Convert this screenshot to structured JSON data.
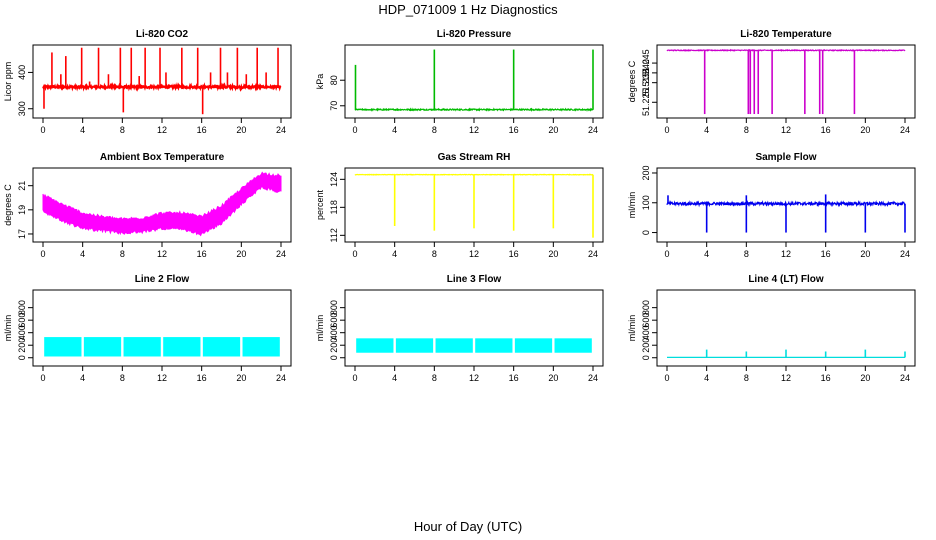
{
  "figure": {
    "title": "HDP_071009  1 Hz Diagnostics",
    "xlabel": "Hour of Day (UTC)"
  },
  "chart_data": [
    {
      "type": "line",
      "title": "Li-820 CO2",
      "ylabel": "Licor ppm",
      "color": "#ff0000",
      "xlim": [
        0,
        24
      ],
      "xticks": [
        "0",
        "4",
        "8",
        "12",
        "16",
        "20",
        "24"
      ],
      "ylim": [
        280,
        470
      ],
      "yticks": [
        {
          "v": 300,
          "label": "300"
        },
        {
          "v": 400,
          "label": "400"
        }
      ],
      "series": {
        "baseline": 360,
        "noise": 3,
        "spikes": [
          {
            "x": 0.1,
            "y": 300
          },
          {
            "x": 0.9,
            "y": 455
          },
          {
            "x": 1.8,
            "y": 395
          },
          {
            "x": 2.3,
            "y": 445
          },
          {
            "x": 3.9,
            "y": 468
          },
          {
            "x": 4.7,
            "y": 375
          },
          {
            "x": 5.6,
            "y": 468
          },
          {
            "x": 6.6,
            "y": 395
          },
          {
            "x": 7.8,
            "y": 468
          },
          {
            "x": 8.1,
            "y": 290
          },
          {
            "x": 8.9,
            "y": 468
          },
          {
            "x": 9.7,
            "y": 390
          },
          {
            "x": 10.3,
            "y": 468
          },
          {
            "x": 11.8,
            "y": 468
          },
          {
            "x": 12.4,
            "y": 400
          },
          {
            "x": 14.0,
            "y": 468
          },
          {
            "x": 15.6,
            "y": 468
          },
          {
            "x": 16.1,
            "y": 285
          },
          {
            "x": 16.9,
            "y": 400
          },
          {
            "x": 17.9,
            "y": 468
          },
          {
            "x": 18.6,
            "y": 400
          },
          {
            "x": 19.6,
            "y": 468
          },
          {
            "x": 20.5,
            "y": 395
          },
          {
            "x": 21.6,
            "y": 468
          },
          {
            "x": 22.5,
            "y": 400
          },
          {
            "x": 23.7,
            "y": 468
          }
        ]
      }
    },
    {
      "type": "line",
      "title": "Li-820 Pressure",
      "ylabel": "kPa",
      "color": "#00bb00",
      "xlim": [
        0,
        24
      ],
      "xticks": [
        "0",
        "4",
        "8",
        "12",
        "16",
        "20",
        "24"
      ],
      "ylim": [
        66,
        93
      ],
      "yticks": [
        {
          "v": 70,
          "label": "70"
        },
        {
          "v": 80,
          "label": "80"
        }
      ],
      "series": {
        "baseline": 68.5,
        "noise": 0.25,
        "spikes": [
          {
            "x": 0.05,
            "y": 86
          },
          {
            "x": 8.0,
            "y": 92
          },
          {
            "x": 16.0,
            "y": 92
          },
          {
            "x": 24.0,
            "y": 92
          }
        ]
      }
    },
    {
      "type": "line",
      "title": "Li-820 Temperature",
      "ylabel": "degrees C",
      "color": "#cc00cc",
      "xlim": [
        0,
        24
      ],
      "xticks": [
        "0",
        "4",
        "8",
        "12",
        "16",
        "20",
        "24"
      ],
      "ylim": [
        51.218,
        51.2532
      ],
      "yticks": [
        {
          "v": 51.225,
          "label": "51.225"
        },
        {
          "v": 51.235,
          "label": "51.235"
        },
        {
          "v": 51.24,
          "label": "51.240"
        },
        {
          "v": 51.245,
          "label": "51.245"
        }
      ],
      "series": {
        "baseline": 51.2515,
        "noise": 0.0002,
        "dips": [
          {
            "x": 3.8,
            "y": 51.219
          },
          {
            "x": 8.2,
            "y": 51.219
          },
          {
            "x": 8.4,
            "y": 51.219
          },
          {
            "x": 8.8,
            "y": 51.219
          },
          {
            "x": 9.2,
            "y": 51.219
          },
          {
            "x": 10.6,
            "y": 51.219
          },
          {
            "x": 13.9,
            "y": 51.219
          },
          {
            "x": 15.4,
            "y": 51.219
          },
          {
            "x": 15.7,
            "y": 51.219
          },
          {
            "x": 18.9,
            "y": 51.219
          }
        ]
      }
    },
    {
      "type": "area",
      "title": "Ambient Box Temperature",
      "ylabel": "degrees C",
      "color": "#ff00ff",
      "xlim": [
        0,
        24
      ],
      "xticks": [
        "0",
        "4",
        "8",
        "12",
        "16",
        "20",
        "24"
      ],
      "ylim": [
        16.5,
        22.3
      ],
      "yticks": [
        {
          "v": 17,
          "label": "17"
        },
        {
          "v": 19,
          "label": "19"
        },
        {
          "v": 21,
          "label": "21"
        }
      ],
      "x": [
        0,
        2,
        4,
        6,
        8,
        10,
        12,
        14,
        16,
        18,
        20,
        22,
        24
      ],
      "upper": [
        20.1,
        19.3,
        18.6,
        18.3,
        18.1,
        18.2,
        18.6,
        18.6,
        18.3,
        19.2,
        20.6,
        21.9,
        21.7
      ],
      "lower": [
        19.0,
        18.2,
        17.6,
        17.4,
        17.2,
        17.3,
        17.6,
        17.5,
        17.1,
        18.0,
        19.6,
        21.0,
        20.6
      ]
    },
    {
      "type": "line",
      "title": "Gas Stream RH",
      "ylabel": "percent",
      "color": "#ffff00",
      "xlim": [
        0,
        24
      ],
      "xticks": [
        "0",
        "4",
        "8",
        "12",
        "16",
        "20",
        "24"
      ],
      "ylim": [
        111,
        126
      ],
      "yticks": [
        {
          "v": 112,
          "label": "112"
        },
        {
          "v": 118,
          "label": "118"
        },
        {
          "v": 124,
          "label": "124"
        }
      ],
      "series": {
        "baseline": 125,
        "noise": 0.05,
        "dips": [
          {
            "x": 4.0,
            "y": 114
          },
          {
            "x": 8.0,
            "y": 113
          },
          {
            "x": 12.0,
            "y": 113.5
          },
          {
            "x": 16.0,
            "y": 113
          },
          {
            "x": 20.0,
            "y": 113.5
          },
          {
            "x": 24.0,
            "y": 111.5
          }
        ]
      }
    },
    {
      "type": "line",
      "title": "Sample Flow",
      "ylabel": "ml/min",
      "color": "#0000ee",
      "xlim": [
        0,
        24
      ],
      "xticks": [
        "0",
        "4",
        "8",
        "12",
        "16",
        "20",
        "24"
      ],
      "ylim": [
        -25,
        210
      ],
      "yticks": [
        {
          "v": 0,
          "label": "0"
        },
        {
          "v": 100,
          "label": "100"
        },
        {
          "v": 200,
          "label": "200"
        }
      ],
      "series": {
        "baseline": 97,
        "noise": 5,
        "dips": [
          {
            "x": 4.0,
            "y": 0
          },
          {
            "x": 8.0,
            "y": 0
          },
          {
            "x": 12.0,
            "y": 0
          },
          {
            "x": 16.0,
            "y": 0
          },
          {
            "x": 20.0,
            "y": 0
          },
          {
            "x": 24.0,
            "y": 0
          }
        ],
        "spikes": [
          {
            "x": 0.1,
            "y": 125
          },
          {
            "x": 8.0,
            "y": 125
          },
          {
            "x": 16.0,
            "y": 128
          }
        ]
      }
    },
    {
      "type": "area",
      "title": "Line 2 Flow",
      "ylabel": "ml/min",
      "color": "#00ffff",
      "xlim": [
        0,
        24
      ],
      "xticks": [
        "0",
        "4",
        "8",
        "12",
        "16",
        "20",
        "24"
      ],
      "ylim": [
        -100,
        1050
      ],
      "yticks": [
        {
          "v": 0,
          "label": "0"
        },
        {
          "v": 200,
          "label": "200"
        },
        {
          "v": 400,
          "label": "400"
        },
        {
          "v": 600,
          "label": "600"
        },
        {
          "v": 800,
          "label": "800"
        }
      ],
      "band": [
        20,
        330
      ],
      "gaps": [
        4,
        8,
        12,
        16,
        20
      ]
    },
    {
      "type": "area",
      "title": "Line 3 Flow",
      "ylabel": "ml/min",
      "color": "#00ffff",
      "xlim": [
        0,
        24
      ],
      "xticks": [
        "0",
        "4",
        "8",
        "12",
        "16",
        "20",
        "24"
      ],
      "ylim": [
        -100,
        1050
      ],
      "yticks": [
        {
          "v": 0,
          "label": "0"
        },
        {
          "v": 200,
          "label": "200"
        },
        {
          "v": 400,
          "label": "400"
        },
        {
          "v": 600,
          "label": "600"
        },
        {
          "v": 800,
          "label": "800"
        }
      ],
      "band": [
        80,
        310
      ],
      "gaps": [
        4,
        8,
        12,
        16,
        20
      ]
    },
    {
      "type": "line",
      "title": "Line 4 (LT) Flow",
      "ylabel": "ml/min",
      "color": "#00dddd",
      "xlim": [
        0,
        24
      ],
      "xticks": [
        "0",
        "4",
        "8",
        "12",
        "16",
        "20",
        "24"
      ],
      "ylim": [
        -100,
        1050
      ],
      "yticks": [
        {
          "v": 0,
          "label": "0"
        },
        {
          "v": 200,
          "label": "200"
        },
        {
          "v": 400,
          "label": "400"
        },
        {
          "v": 600,
          "label": "600"
        },
        {
          "v": 800,
          "label": "800"
        }
      ],
      "series": {
        "baseline": 5,
        "noise": 0,
        "spikes": [
          {
            "x": 4.0,
            "y": 130
          },
          {
            "x": 8.0,
            "y": 100
          },
          {
            "x": 12.0,
            "y": 130
          },
          {
            "x": 16.0,
            "y": 100
          },
          {
            "x": 20.0,
            "y": 130
          },
          {
            "x": 24.0,
            "y": 100
          }
        ]
      }
    }
  ]
}
